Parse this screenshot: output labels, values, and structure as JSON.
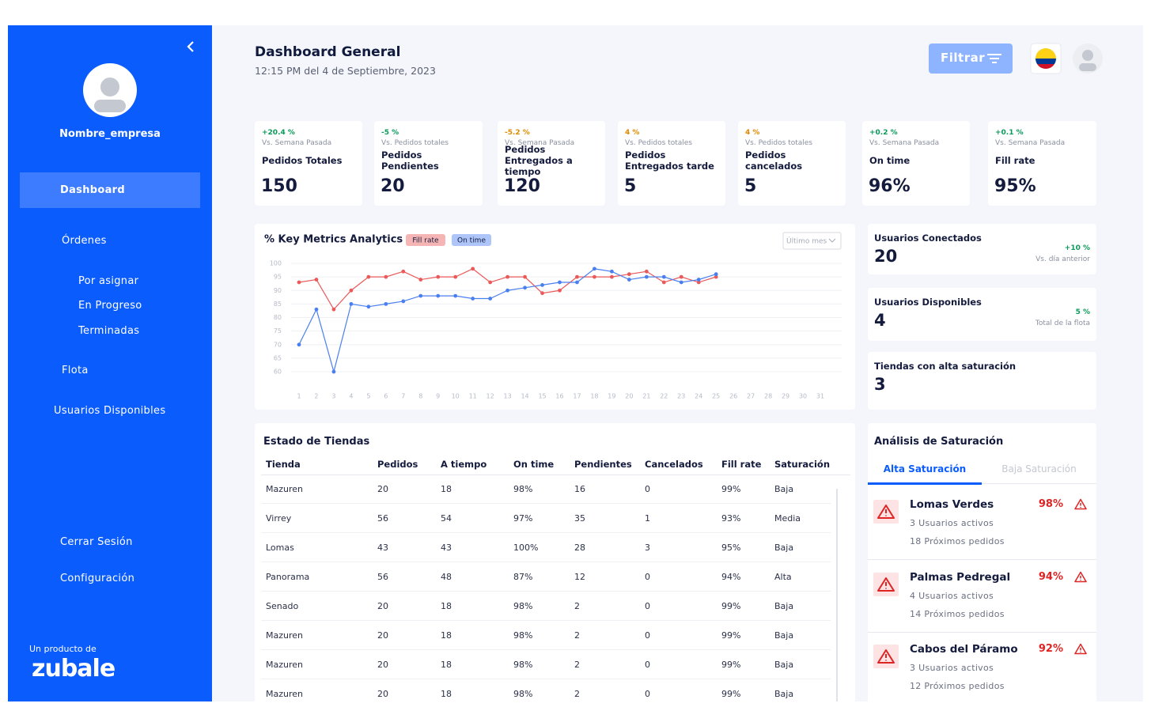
{
  "sidebar": {
    "company": "Nombre_empresa",
    "nav": [
      "Dashboard",
      "Órdenes",
      "Por asignar",
      "En Progreso",
      "Terminadas",
      "Flota",
      "Usuarios Disponibles"
    ],
    "bottom": [
      "Cerrar Sesión",
      "Configuración"
    ],
    "product_of": "Un producto de",
    "brand": "zubale"
  },
  "header": {
    "title": "Dashboard General",
    "subtitle": "12:15 PM del 4 de Septiembre, 2023",
    "filter": "Filtrar"
  },
  "kpis": [
    {
      "change": "+20.4 %",
      "note": "Vs. Semana Pasada",
      "label": "Pedidos Totales",
      "value": 150,
      "color": "#0a9a5a"
    },
    {
      "change": "-5 %",
      "note": "Vs. Pedidos totales",
      "label": "Pedidos Pendientes",
      "value": 20,
      "color": "#0a9a5a"
    },
    {
      "change": "-5.2 %",
      "note": "Vs. Semana Pasada",
      "label": "Pedidos Entregados a tiempo",
      "value": 120,
      "color": "#e08a00"
    },
    {
      "change": "4 %",
      "note": "Vs. Pedidos totales",
      "label": "Pedidos Entregados tarde",
      "value": 5,
      "color": "#e08a00"
    },
    {
      "change": "4 %",
      "note": "Vs. Pedidos totales",
      "label": "Pedidos cancelados",
      "value": 5,
      "color": "#e08a00"
    },
    {
      "change": "+0.2 %",
      "note": "Vs. Semana Pasada",
      "label": "On time",
      "value": "96%",
      "color": "#0a9a5a"
    },
    {
      "change": "+0.1 %",
      "note": "Vs. Semana Pasada",
      "label": "Fill rate",
      "value": "95%",
      "color": "#0a9a5a"
    }
  ],
  "chart_data": {
    "type": "line",
    "title": "% Key Metrics Analytics",
    "categories": [
      1,
      2,
      3,
      4,
      5,
      6,
      7,
      8,
      9,
      10,
      11,
      12,
      13,
      14,
      15,
      16,
      17,
      18,
      19,
      20,
      21,
      22,
      23,
      24,
      25,
      26,
      27,
      28,
      29,
      30,
      31
    ],
    "series": [
      {
        "name": "Fill rate",
        "color": "#ea5a5a",
        "values": [
          93,
          94,
          83,
          90,
          95,
          95,
          97,
          94,
          95,
          95,
          98,
          93,
          95,
          95,
          89,
          90,
          95,
          95,
          95,
          96,
          97,
          93,
          95,
          93,
          95,
          null,
          null,
          null,
          null,
          null,
          null
        ]
      },
      {
        "name": "On time",
        "color": "#4a7ff0",
        "values": [
          70,
          83,
          60,
          85,
          84,
          85,
          86,
          88,
          88,
          88,
          87,
          87,
          90,
          91,
          92,
          93,
          93,
          98,
          97,
          94,
          95,
          95,
          93,
          94,
          96,
          null,
          null,
          null,
          null,
          null,
          null
        ]
      }
    ],
    "ylim": [
      60,
      100
    ],
    "yticks": [
      60,
      65,
      70,
      75,
      80,
      85,
      90,
      95,
      100
    ],
    "grid": true
  },
  "chart_controls": {
    "range": "Último mes"
  },
  "stats": [
    {
      "label": "Usuarios Conectados",
      "value": 20,
      "change": "+10 %",
      "note": "Vs. día anterior"
    },
    {
      "label": "Usuarios Disponibles",
      "value": 4,
      "change": "5 %",
      "note": "Total de la flota"
    },
    {
      "label": "Tiendas con alta saturación",
      "value": 3
    }
  ],
  "table": {
    "title": "Estado de Tiendas",
    "headers": [
      "Tienda",
      "Pedidos",
      "A tiempo",
      "On time",
      "Pendientes",
      "Cancelados",
      "Fill rate",
      "Saturación"
    ],
    "rows": [
      [
        "Mazuren",
        20,
        18,
        "98%",
        16,
        0,
        "99%",
        "Baja"
      ],
      [
        "Virrey",
        56,
        54,
        "97%",
        35,
        1,
        "93%",
        "Media"
      ],
      [
        "Lomas",
        43,
        43,
        "100%",
        28,
        3,
        "95%",
        "Baja"
      ],
      [
        "Panorama",
        56,
        48,
        "87%",
        12,
        0,
        "94%",
        "Alta"
      ],
      [
        "Senado",
        20,
        18,
        "98%",
        2,
        0,
        "99%",
        "Baja"
      ],
      [
        "Mazuren",
        20,
        18,
        "98%",
        2,
        0,
        "99%",
        "Baja"
      ],
      [
        "Mazuren",
        20,
        18,
        "98%",
        2,
        0,
        "99%",
        "Baja"
      ],
      [
        "Mazuren",
        20,
        18,
        "98%",
        2,
        0,
        "99%",
        "Baja"
      ]
    ]
  },
  "saturation": {
    "title": "Análisis de Saturación",
    "tabs": [
      "Alta Saturación",
      "Baja Saturación"
    ],
    "items": [
      {
        "name": "Lomas Verdes",
        "pct": "98%",
        "users": "3 Usuarios activos",
        "orders": "18 Próximos pedidos"
      },
      {
        "name": "Palmas Pedregal",
        "pct": "94%",
        "users": "4 Usuarios activos",
        "orders": "14 Próximos pedidos"
      },
      {
        "name": "Cabos del Páramo",
        "pct": "92%",
        "users": "3 Usuarios activos",
        "orders": "12 Próximos pedidos"
      }
    ]
  }
}
